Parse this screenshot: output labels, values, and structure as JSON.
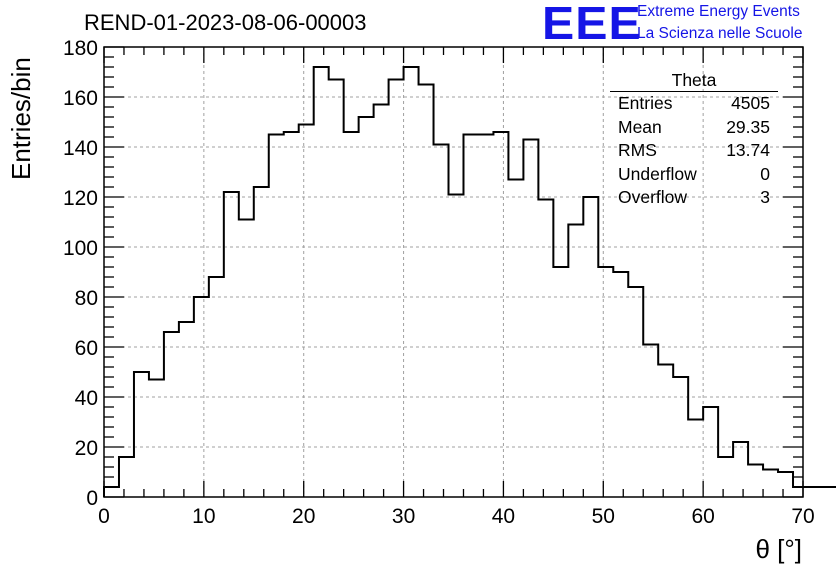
{
  "title": "REND-01-2023-08-06-00003",
  "logo": {
    "mark": "EEE",
    "line1": "Extreme Energy Events",
    "line2": "La Scienza nelle Scuole",
    "color": "#1515e6"
  },
  "stats_box": {
    "title": "Theta",
    "rows": [
      {
        "label": "Entries",
        "value": "4505"
      },
      {
        "label": "Mean",
        "value": "29.35"
      },
      {
        "label": "RMS",
        "value": "13.74"
      },
      {
        "label": "Underflow",
        "value": "0"
      },
      {
        "label": "Overflow",
        "value": "3"
      }
    ]
  },
  "chart_data": {
    "type": "histogram",
    "xlabel": "θ [°]",
    "ylabel": "Entries/bin",
    "xlim": [
      0,
      70
    ],
    "ylim": [
      0,
      180
    ],
    "grid": true,
    "grid_style": "dashed",
    "x_ticks": [
      0,
      10,
      20,
      30,
      40,
      50,
      60,
      70
    ],
    "y_ticks": [
      0,
      20,
      40,
      60,
      80,
      100,
      120,
      140,
      160,
      180
    ],
    "bin_width": 1.5,
    "bin_edges_start": 0,
    "values": [
      4,
      16,
      50,
      47,
      66,
      70,
      80,
      88,
      122,
      111,
      124,
      145,
      146,
      149,
      172,
      167,
      146,
      152,
      157,
      167,
      172,
      165,
      141,
      121,
      145,
      145,
      146,
      127,
      143,
      119,
      92,
      109,
      120,
      92,
      90,
      84,
      61,
      53,
      48,
      31,
      36,
      16,
      22,
      13,
      11,
      10,
      4,
      4,
      4
    ]
  }
}
